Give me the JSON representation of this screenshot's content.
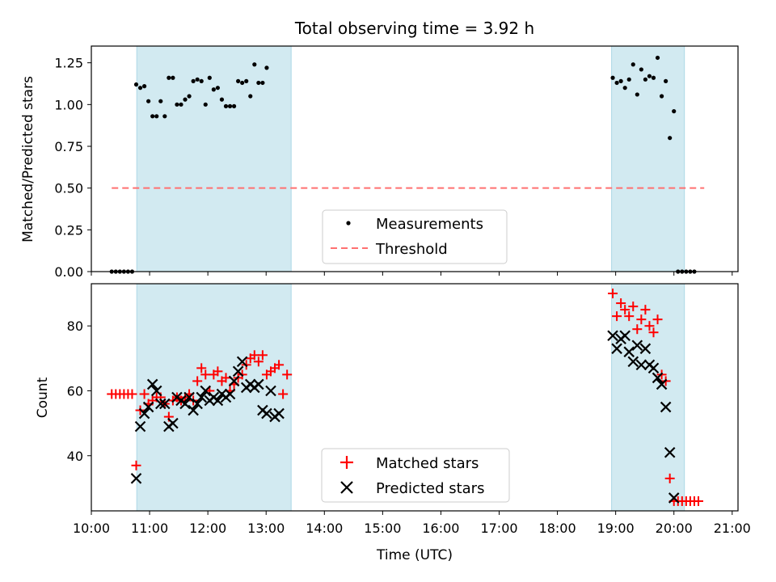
{
  "figure": {
    "title": "Total observing time = 3.92 h",
    "xlabel": "Time (UTC)"
  },
  "colors": {
    "shade": "#add8e6",
    "threshold": "#ff7070",
    "measurement": "#000000",
    "matched": "#ff0000",
    "predicted": "#000000"
  },
  "chart_data": [
    {
      "type": "scatter",
      "title": "Total observing time = 3.92 h",
      "xlabel": "",
      "ylabel": "Matched/Predicted stars",
      "xlim": [
        10.0,
        21.1
      ],
      "ylim": [
        0.0,
        1.35
      ],
      "xticks": [
        "10:00",
        "11:00",
        "12:00",
        "13:00",
        "14:00",
        "15:00",
        "16:00",
        "17:00",
        "18:00",
        "19:00",
        "20:00",
        "21:00"
      ],
      "xtick_values": [
        10,
        11,
        12,
        13,
        14,
        15,
        16,
        17,
        18,
        19,
        20,
        21
      ],
      "yticks": [
        "0.00",
        "0.25",
        "0.50",
        "0.75",
        "1.00",
        "1.25"
      ],
      "ytick_values": [
        0,
        0.25,
        0.5,
        0.75,
        1.0,
        1.25
      ],
      "shaded_intervals": [
        [
          10.78,
          13.43
        ],
        [
          18.93,
          20.18
        ]
      ],
      "legend": {
        "placement": "lower center",
        "entries": [
          "Measurements",
          "Threshold"
        ]
      },
      "threshold": {
        "name": "Threshold",
        "value": 0.5,
        "x_range": [
          10.35,
          20.52
        ]
      },
      "series": [
        {
          "name": "Measurements",
          "marker": "dot",
          "x": [
            10.35,
            10.42,
            10.49,
            10.56,
            10.63,
            10.7,
            10.77,
            10.84,
            10.91,
            10.98,
            11.05,
            11.12,
            11.19,
            11.26,
            11.33,
            11.4,
            11.47,
            11.54,
            11.61,
            11.68,
            11.75,
            11.82,
            11.89,
            11.96,
            12.03,
            12.1,
            12.17,
            12.24,
            12.31,
            12.38,
            12.45,
            12.52,
            12.59,
            12.66,
            12.73,
            12.8,
            12.87,
            12.94,
            13.01,
            13.08,
            13.15,
            13.22,
            13.29,
            13.36,
            13.43,
            18.95,
            19.02,
            19.09,
            19.16,
            19.23,
            19.3,
            19.37,
            19.44,
            19.51,
            19.58,
            19.65,
            19.72,
            19.79,
            19.86,
            19.93,
            20.0,
            20.07,
            20.14,
            20.21,
            20.28,
            20.35,
            20.42,
            20.49,
            20.56
          ],
          "y": [
            0.0,
            0.0,
            0.0,
            0.0,
            0.0,
            0.0,
            1.12,
            1.1,
            1.11,
            1.02,
            0.93,
            0.93,
            1.02,
            0.93,
            1.16,
            1.16,
            1.0,
            1.0,
            1.03,
            1.05,
            1.14,
            1.15,
            1.14,
            1.0,
            1.16,
            1.09,
            1.1,
            1.03,
            0.99,
            0.99,
            0.99,
            1.14,
            1.13,
            1.14,
            1.05,
            1.24,
            1.13,
            1.13,
            1.22,
            null,
            null,
            null,
            null,
            null,
            null,
            1.16,
            1.13,
            1.14,
            1.1,
            1.15,
            1.24,
            1.06,
            1.21,
            1.15,
            1.17,
            1.16,
            1.28,
            1.05,
            1.14,
            0.8,
            0.96,
            0.0,
            0.0,
            0.0,
            0.0,
            0.0,
            null,
            null,
            null
          ]
        }
      ]
    },
    {
      "type": "scatter",
      "title": "",
      "xlabel": "Time (UTC)",
      "ylabel": "Count",
      "xlim": [
        10.0,
        21.1
      ],
      "ylim": [
        23,
        93
      ],
      "xticks": [
        "10:00",
        "11:00",
        "12:00",
        "13:00",
        "14:00",
        "15:00",
        "16:00",
        "17:00",
        "18:00",
        "19:00",
        "20:00",
        "21:00"
      ],
      "xtick_values": [
        10,
        11,
        12,
        13,
        14,
        15,
        16,
        17,
        18,
        19,
        20,
        21
      ],
      "yticks": [
        "40",
        "60",
        "80"
      ],
      "ytick_values": [
        40,
        60,
        80
      ],
      "shaded_intervals": [
        [
          10.78,
          13.43
        ],
        [
          18.93,
          20.18
        ]
      ],
      "legend": {
        "placement": "lower center",
        "entries": [
          "Matched stars",
          "Predicted stars"
        ]
      },
      "series": [
        {
          "name": "Matched stars",
          "marker": "plus",
          "x": [
            10.35,
            10.42,
            10.49,
            10.56,
            10.63,
            10.7,
            10.77,
            10.84,
            10.91,
            10.98,
            11.05,
            11.12,
            11.19,
            11.26,
            11.33,
            11.4,
            11.47,
            11.54,
            11.61,
            11.68,
            11.75,
            11.82,
            11.89,
            11.96,
            12.03,
            12.1,
            12.17,
            12.24,
            12.31,
            12.38,
            12.45,
            12.52,
            12.59,
            12.66,
            12.73,
            12.8,
            12.87,
            12.94,
            13.01,
            13.08,
            13.15,
            13.22,
            13.29,
            13.36,
            13.43,
            18.95,
            19.02,
            19.09,
            19.16,
            19.23,
            19.3,
            19.37,
            19.44,
            19.51,
            19.58,
            19.65,
            19.72,
            19.79,
            19.86,
            19.93,
            20.0,
            20.07,
            20.14,
            20.21,
            20.28,
            20.35,
            20.42,
            20.49,
            20.56
          ],
          "y": [
            59,
            59,
            59,
            59,
            59,
            59,
            37,
            54,
            59,
            56,
            57,
            58,
            58,
            56,
            52,
            57,
            58,
            57,
            58,
            59,
            57,
            63,
            67,
            65,
            60,
            65,
            66,
            63,
            64,
            60,
            62,
            64,
            65,
            68,
            70,
            71,
            69,
            71,
            65,
            66,
            67,
            68,
            59,
            65,
            null,
            90,
            83,
            87,
            85,
            83,
            86,
            79,
            82,
            85,
            80,
            78,
            82,
            65,
            63,
            33,
            26,
            26,
            26,
            26,
            26,
            26,
            26,
            null,
            null
          ],
          "y_note": ""
        },
        {
          "name": "Predicted stars",
          "marker": "x",
          "x": [
            10.77,
            10.84,
            10.91,
            10.98,
            11.05,
            11.12,
            11.19,
            11.26,
            11.33,
            11.4,
            11.47,
            11.54,
            11.61,
            11.68,
            11.75,
            11.82,
            11.89,
            11.96,
            12.03,
            12.1,
            12.17,
            12.24,
            12.31,
            12.38,
            12.45,
            12.52,
            12.59,
            12.66,
            12.73,
            12.8,
            12.87,
            12.94,
            13.01,
            13.08,
            13.15,
            13.22,
            13.29,
            13.36,
            18.95,
            19.02,
            19.09,
            19.16,
            19.23,
            19.3,
            19.37,
            19.44,
            19.51,
            19.58,
            19.65,
            19.72,
            19.79,
            19.86,
            19.93,
            20.0,
            20.07,
            20.14
          ],
          "y": [
            33,
            49,
            53,
            55,
            62,
            60,
            56,
            56,
            49,
            50,
            58,
            57,
            56,
            58,
            54,
            56,
            58,
            60,
            57,
            58,
            57,
            59,
            58,
            59,
            63,
            66,
            69,
            61,
            62,
            61,
            62,
            54,
            53,
            60,
            52,
            53,
            null,
            null,
            77,
            73,
            76,
            77,
            72,
            69,
            74,
            68,
            73,
            68,
            67,
            64,
            62,
            55,
            41,
            27,
            null,
            null
          ]
        }
      ]
    }
  ]
}
